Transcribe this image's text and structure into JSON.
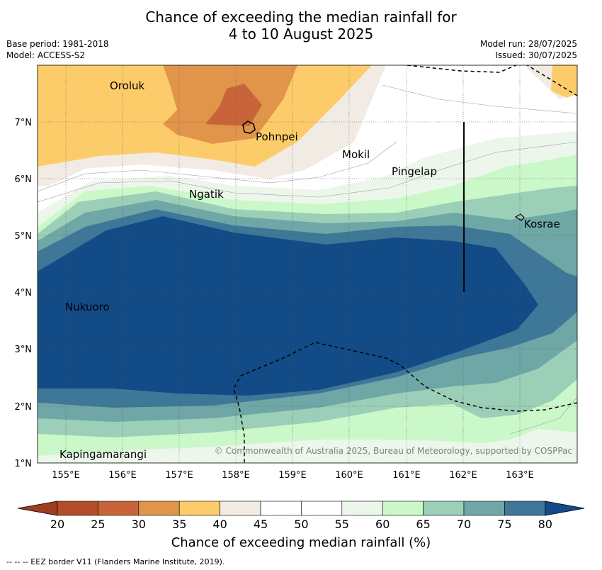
{
  "title_line1": "Chance of exceeding the median rainfall for",
  "title_line2": "4 to 10 August 2025",
  "meta_left": [
    "Base period: 1981-2018",
    "Model: ACCESS-S2"
  ],
  "meta_right": [
    "Model run: 28/07/2025",
    "Issued: 30/07/2025"
  ],
  "lat_ticks": [
    "1°N",
    "2°N",
    "3°N",
    "4°N",
    "5°N",
    "6°N",
    "7°N"
  ],
  "lon_ticks": [
    "155°E",
    "156°E",
    "157°E",
    "158°E",
    "159°E",
    "160°E",
    "161°E",
    "162°E",
    "163°E"
  ],
  "places": [
    "Oroluk",
    "Pohnpei",
    "Mokil",
    "Pingelap",
    "Ngatik",
    "Kosrae",
    "Nukuoro",
    "Kapingamarangi"
  ],
  "copyright": "© Commonwealth of Australia 2025, Bureau of Meteorology, supported by COSPPac",
  "colorbar": {
    "ticks": [
      "20",
      "25",
      "30",
      "35",
      "40",
      "45",
      "50",
      "55",
      "60",
      "65",
      "70",
      "75",
      "80"
    ],
    "colors": [
      "#9e3d1f",
      "#b14d28",
      "#c9643a",
      "#e0954b",
      "#fdcc6a",
      "#f1ebe4",
      "#ffffff",
      "#ffffff",
      "#ecf6ea",
      "#caf8c8",
      "#9bcfb8",
      "#6ea7a6",
      "#3e7797",
      "#124b86"
    ],
    "label": "Chance of exceeding median rainfall (%)"
  },
  "footnote": "--  --  -- EEZ border V11 (Flanders Marine Institute, 2019)."
}
